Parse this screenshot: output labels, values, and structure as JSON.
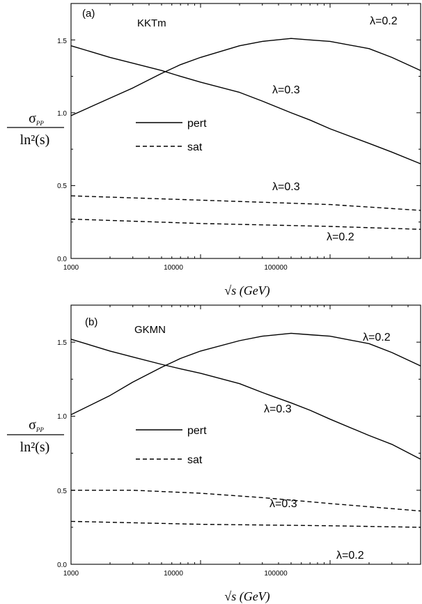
{
  "chart_data": [
    {
      "type": "line",
      "panel_label": "(a)",
      "title": "KKTm",
      "xscale": "log",
      "xlim": [
        1000,
        500000
      ],
      "ylim": [
        0.0,
        1.75
      ],
      "xticks": [
        "1000",
        "10000",
        "100000"
      ],
      "yticks": [
        "0.0",
        "0.5",
        "1.0",
        "1.5"
      ],
      "xlabel": "√s (GeV)",
      "ylabel_numerator": "σ",
      "ylabel_numerator_sub": "PP",
      "ylabel_denominator": "ln²(s)",
      "legend": [
        {
          "label": "pert",
          "style": "solid"
        },
        {
          "label": "sat",
          "style": "dashed"
        }
      ],
      "series": [
        {
          "name": "pert λ=0.2",
          "style": "solid",
          "label": "λ=0.2",
          "x": [
            1000,
            2000,
            3000,
            5000,
            7000,
            10000,
            20000,
            30000,
            50000,
            70000,
            100000,
            200000,
            300000,
            500000
          ],
          "y": [
            0.98,
            1.1,
            1.17,
            1.27,
            1.33,
            1.38,
            1.46,
            1.49,
            1.51,
            1.5,
            1.49,
            1.44,
            1.38,
            1.29
          ]
        },
        {
          "name": "pert λ=0.3",
          "style": "solid",
          "label": "λ=0.3",
          "x": [
            1000,
            2000,
            3000,
            5000,
            7000,
            10000,
            20000,
            30000,
            50000,
            70000,
            100000,
            200000,
            300000,
            500000
          ],
          "y": [
            1.46,
            1.38,
            1.34,
            1.29,
            1.25,
            1.21,
            1.14,
            1.08,
            1.0,
            0.95,
            0.89,
            0.79,
            0.73,
            0.65
          ]
        },
        {
          "name": "sat λ=0.3",
          "style": "dashed",
          "label": "λ=0.3",
          "x": [
            1000,
            10000,
            100000,
            500000
          ],
          "y": [
            0.43,
            0.4,
            0.37,
            0.33
          ]
        },
        {
          "name": "sat λ=0.2",
          "style": "dashed",
          "label": "λ=0.2",
          "x": [
            1000,
            10000,
            100000,
            500000
          ],
          "y": [
            0.27,
            0.24,
            0.22,
            0.2
          ]
        }
      ]
    },
    {
      "type": "line",
      "panel_label": "(b)",
      "title": "GKMN",
      "xscale": "log",
      "xlim": [
        1000,
        500000
      ],
      "ylim": [
        0.0,
        1.75
      ],
      "xticks": [
        "1000",
        "10000",
        "100000"
      ],
      "yticks": [
        "0.0",
        "0.5",
        "1.0",
        "1.5"
      ],
      "xlabel": "√s (GeV)",
      "ylabel_numerator": "σ",
      "ylabel_numerator_sub": "PP",
      "ylabel_denominator": "ln²(s)",
      "legend": [
        {
          "label": "pert",
          "style": "solid"
        },
        {
          "label": "sat",
          "style": "dashed"
        }
      ],
      "series": [
        {
          "name": "pert λ=0.2",
          "style": "solid",
          "label": "λ=0.2",
          "x": [
            1000,
            2000,
            3000,
            5000,
            7000,
            10000,
            20000,
            30000,
            50000,
            70000,
            100000,
            200000,
            300000,
            500000
          ],
          "y": [
            1.01,
            1.14,
            1.23,
            1.33,
            1.39,
            1.44,
            1.51,
            1.54,
            1.56,
            1.55,
            1.54,
            1.49,
            1.43,
            1.34
          ]
        },
        {
          "name": "pert λ=0.3",
          "style": "solid",
          "label": "λ=0.3",
          "x": [
            1000,
            2000,
            3000,
            5000,
            7000,
            10000,
            20000,
            30000,
            50000,
            70000,
            100000,
            200000,
            300000,
            500000
          ],
          "y": [
            1.52,
            1.44,
            1.4,
            1.35,
            1.32,
            1.29,
            1.22,
            1.16,
            1.09,
            1.04,
            0.98,
            0.87,
            0.81,
            0.71
          ]
        },
        {
          "name": "sat λ=0.3",
          "style": "dashed",
          "label": "λ=0.3",
          "x": [
            1000,
            3000,
            10000,
            30000,
            100000,
            500000
          ],
          "y": [
            0.5,
            0.5,
            0.48,
            0.45,
            0.41,
            0.36
          ]
        },
        {
          "name": "sat λ=0.2",
          "style": "dashed",
          "label": "λ=0.2",
          "x": [
            1000,
            10000,
            100000,
            500000
          ],
          "y": [
            0.29,
            0.27,
            0.26,
            0.25
          ]
        }
      ]
    }
  ]
}
